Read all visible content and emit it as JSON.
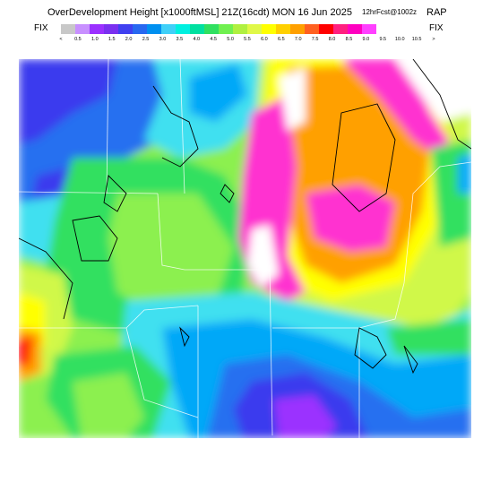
{
  "header": {
    "title": "OverDevelopment Height [x1000ftMSL] 21Z(16cdt) MON 16 Jun 2025",
    "run": "12hrFcst@1002z",
    "model": "RAP"
  },
  "legend": {
    "fix_left": "FIX",
    "fix_right": "FIX",
    "tick_labels": [
      "<",
      "0.5",
      "1.0",
      "1.5",
      "2.0",
      "2.5",
      "3.0",
      "3.5",
      "4.0",
      "4.5",
      "5.0",
      "5.5",
      "6.0",
      "6.5",
      "7.0",
      "7.5",
      "8.0",
      "8.5",
      "9.0",
      "9.5",
      "10.0",
      "10.5",
      ">"
    ],
    "colors": [
      "#c8c8c8",
      "#c890ff",
      "#9b30ff",
      "#7a30f0",
      "#4040f0",
      "#2868f0",
      "#0090f0",
      "#40d0f8",
      "#00f0e0",
      "#00e0a0",
      "#30e060",
      "#70f050",
      "#b0f040",
      "#e0f848",
      "#ffff00",
      "#ffd000",
      "#ffa000",
      "#ff6020",
      "#ff0000",
      "#ff2080",
      "#ff00c0",
      "#ff40ff"
    ]
  },
  "map": {
    "region": "central-us",
    "colors": {
      "blue_violet": "#3a3aee",
      "blue": "#2870f0",
      "light_blue": "#00a8f8",
      "cyan": "#40e0f0",
      "green": "#30e060",
      "light_green": "#8cf050",
      "yellow_green": "#d0f848",
      "yellow": "#ffff00",
      "orange": "#ffa000",
      "magenta": "#ff30d0",
      "purple": "#9b30ff",
      "white": "#ffffff"
    }
  }
}
